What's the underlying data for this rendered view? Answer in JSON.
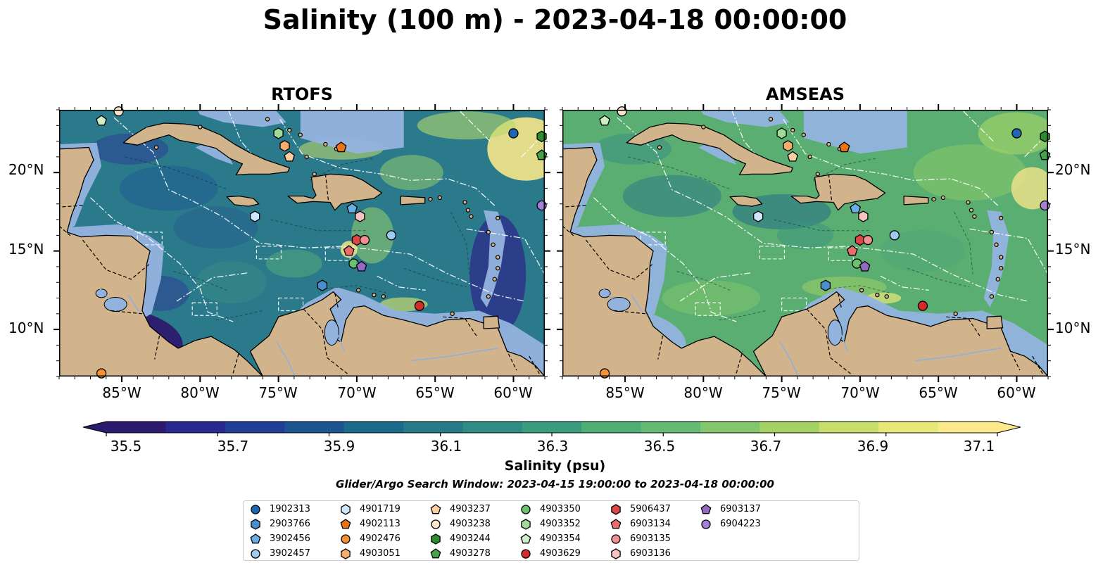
{
  "figure": {
    "title": "Salinity (100 m) - 2023-04-18 00:00:00",
    "panels": [
      {
        "title": "RTOFS",
        "ocean_palette": "rtofs"
      },
      {
        "title": "AMSEAS",
        "ocean_palette": "amseas"
      }
    ],
    "extent": {
      "lon": [
        -89,
        -58
      ],
      "lat": [
        7,
        24
      ]
    },
    "lat_ticks": [
      "20°N",
      "15°N",
      "10°N"
    ],
    "lon_ticks": [
      "85°W",
      "80°W",
      "75°W",
      "70°W",
      "65°W",
      "60°W"
    ],
    "colorbar": {
      "label": "Salinity (psu)",
      "ticks": [
        "35.5",
        "35.7",
        "35.9",
        "36.1",
        "36.3",
        "36.5",
        "36.7",
        "36.9",
        "37.1"
      ],
      "range": [
        35.5,
        37.1
      ],
      "extend": "both",
      "colors": [
        "#2c1a6e",
        "#262a8f",
        "#1f3f97",
        "#1a5592",
        "#1b6a8c",
        "#247a87",
        "#2e8c82",
        "#3a9c7f",
        "#4daf76",
        "#65bb73",
        "#84c66b",
        "#a5d265",
        "#c7de6a",
        "#e8e87a",
        "#fbe98c"
      ]
    },
    "search_window": "Glider/Argo Search Window: 2023-04-15 19:00:00 to 2023-04-18 00:00:00",
    "colors": {
      "land": "#d2b48c",
      "shelf": "#93b3df",
      "rtofs_ocean": "#2a7a8c",
      "amseas_ocean": "#5aae72"
    }
  },
  "floats": [
    {
      "id": "1902313",
      "marker": "circle",
      "color": "#1f67b3",
      "lon": -60.0,
      "lat": 22.5
    },
    {
      "id": "2903766",
      "marker": "hexagon",
      "color": "#4a8ed0",
      "lon": -72.2,
      "lat": 12.8
    },
    {
      "id": "3902456",
      "marker": "pentagon",
      "color": "#6aaee6",
      "lon": -70.3,
      "lat": 17.7
    },
    {
      "id": "3902457",
      "marker": "circle",
      "color": "#9ecbf0",
      "lon": -67.8,
      "lat": 16.0
    },
    {
      "id": "4901719",
      "marker": "hexagon",
      "color": "#cfe6fa",
      "lon": -76.5,
      "lat": 17.2
    },
    {
      "id": "4902113",
      "marker": "pentagon",
      "color": "#ec7314",
      "lon": -71.0,
      "lat": 21.6
    },
    {
      "id": "4902476",
      "marker": "circle",
      "color": "#f59135",
      "lon": -86.3,
      "lat": 7.2
    },
    {
      "id": "4903051",
      "marker": "hexagon",
      "color": "#f7ad6c",
      "lon": -74.6,
      "lat": 21.7
    },
    {
      "id": "4903237",
      "marker": "pentagon",
      "color": "#fbcfa0",
      "lon": -74.3,
      "lat": 21.0
    },
    {
      "id": "4903238",
      "marker": "circle",
      "color": "#fde4cc",
      "lon": -85.2,
      "lat": 23.9
    },
    {
      "id": "4903244",
      "marker": "hexagon",
      "color": "#2d8c2d",
      "lon": -58.2,
      "lat": 22.3
    },
    {
      "id": "4903278",
      "marker": "pentagon",
      "color": "#47a347",
      "lon": -58.2,
      "lat": 21.1
    },
    {
      "id": "4903350",
      "marker": "circle",
      "color": "#6cc26c",
      "lon": -70.2,
      "lat": 14.2
    },
    {
      "id": "4903352",
      "marker": "hexagon",
      "color": "#9edc98",
      "lon": -75.0,
      "lat": 22.5
    },
    {
      "id": "4903354",
      "marker": "pentagon",
      "color": "#cdeec6",
      "lon": -86.3,
      "lat": 23.3
    },
    {
      "id": "4903629",
      "marker": "circle",
      "color": "#d42a2a",
      "lon": -66.0,
      "lat": 11.5
    },
    {
      "id": "5906437",
      "marker": "hexagon",
      "color": "#de4545",
      "lon": -70.0,
      "lat": 15.7
    },
    {
      "id": "6903134",
      "marker": "pentagon",
      "color": "#ec6b6b",
      "lon": -70.5,
      "lat": 15.0
    },
    {
      "id": "6903135",
      "marker": "circle",
      "color": "#f19090",
      "lon": -69.5,
      "lat": 15.7
    },
    {
      "id": "6903136",
      "marker": "hexagon",
      "color": "#f8c2c2",
      "lon": -69.8,
      "lat": 17.2
    },
    {
      "id": "6903137",
      "marker": "pentagon",
      "color": "#9568c4",
      "lon": -69.7,
      "lat": 14.0
    },
    {
      "id": "6904223",
      "marker": "circle",
      "color": "#a67fd6",
      "lon": -58.2,
      "lat": 17.9
    }
  ]
}
